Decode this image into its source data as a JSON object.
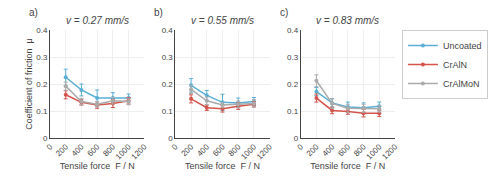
{
  "chart_data": [
    {
      "type": "line",
      "title": "v = 0.27 mm/s",
      "annotation": "a)",
      "xlabel": "Tensile force  F / N",
      "ylabel": "Coefficient of friction  μ",
      "x": [
        200,
        400,
        600,
        800,
        1000
      ],
      "series": [
        {
          "name": "Uncoated",
          "color": "#5aafd4",
          "marker": "circle",
          "values": [
            0.225,
            0.178,
            0.148,
            0.148,
            0.148
          ],
          "errors": [
            0.03,
            0.022,
            0.03,
            0.02,
            0.015
          ]
        },
        {
          "name": "CrAlN",
          "color": "#d4534a",
          "marker": "circle",
          "values": [
            0.16,
            0.132,
            0.122,
            0.128,
            0.138
          ],
          "errors": [
            0.015,
            0.01,
            0.012,
            0.015,
            0.012
          ]
        },
        {
          "name": "CrAlMoN",
          "color": "#aaaaaa",
          "marker": "circle",
          "values": [
            0.192,
            0.135,
            0.125,
            0.138,
            0.135
          ],
          "errors": [
            0.015,
            0.012,
            0.01,
            0.012,
            0.012
          ]
        }
      ],
      "xlim": [
        0,
        1200
      ],
      "xticks": [
        0,
        200,
        400,
        600,
        800,
        1000,
        1200
      ],
      "ylim": [
        0,
        0.4
      ],
      "yticks": [
        0,
        0.1,
        0.2,
        0.3,
        0.4
      ],
      "grid": true
    },
    {
      "type": "line",
      "title": "v = 0.55 mm/s",
      "annotation": "b)",
      "xlabel": "Tensile force  F / N",
      "x": [
        200,
        400,
        600,
        800,
        1000
      ],
      "series": [
        {
          "name": "Uncoated",
          "color": "#5aafd4",
          "marker": "circle",
          "values": [
            0.195,
            0.158,
            0.132,
            0.13,
            0.135
          ],
          "errors": [
            0.025,
            0.018,
            0.03,
            0.018,
            0.015
          ]
        },
        {
          "name": "CrAlN",
          "color": "#d4534a",
          "marker": "circle",
          "values": [
            0.145,
            0.112,
            0.108,
            0.118,
            0.125
          ],
          "errors": [
            0.015,
            0.01,
            0.012,
            0.012,
            0.01
          ]
        },
        {
          "name": "CrAlMoN",
          "color": "#aaaaaa",
          "marker": "circle",
          "values": [
            0.18,
            0.138,
            0.122,
            0.125,
            0.128
          ],
          "errors": [
            0.015,
            0.014,
            0.01,
            0.012,
            0.014
          ]
        }
      ],
      "xlim": [
        0,
        1200
      ],
      "xticks": [
        0,
        200,
        400,
        600,
        800,
        1000,
        1200
      ],
      "ylim": [
        0,
        0.4
      ],
      "yticks": [
        0,
        0.1,
        0.2,
        0.3,
        0.4
      ],
      "grid": true
    },
    {
      "type": "line",
      "title": "v = 0.83 mm/s",
      "annotation": "c)",
      "xlabel": "Tensile force  F / N",
      "x": [
        200,
        400,
        600,
        800,
        1000
      ],
      "series": [
        {
          "name": "Uncoated",
          "color": "#5aafd4",
          "marker": "circle",
          "values": [
            0.172,
            0.13,
            0.115,
            0.112,
            0.118
          ],
          "errors": [
            0.015,
            0.015,
            0.018,
            0.018,
            0.015
          ]
        },
        {
          "name": "CrAlN",
          "color": "#d4534a",
          "marker": "circle",
          "values": [
            0.148,
            0.102,
            0.098,
            0.092,
            0.092
          ],
          "errors": [
            0.015,
            0.012,
            0.01,
            0.014,
            0.012
          ]
        },
        {
          "name": "CrAlMoN",
          "color": "#aaaaaa",
          "marker": "circle",
          "values": [
            0.212,
            0.128,
            0.11,
            0.11,
            0.108
          ],
          "errors": [
            0.022,
            0.018,
            0.015,
            0.015,
            0.012
          ]
        }
      ],
      "xlim": [
        0,
        1200
      ],
      "xticks": [
        0,
        200,
        400,
        600,
        800,
        1000,
        1200
      ],
      "ylim": [
        0,
        0.4
      ],
      "yticks": [
        0,
        0.1,
        0.2,
        0.3,
        0.4
      ],
      "grid": true,
      "legend": "upper right"
    }
  ]
}
